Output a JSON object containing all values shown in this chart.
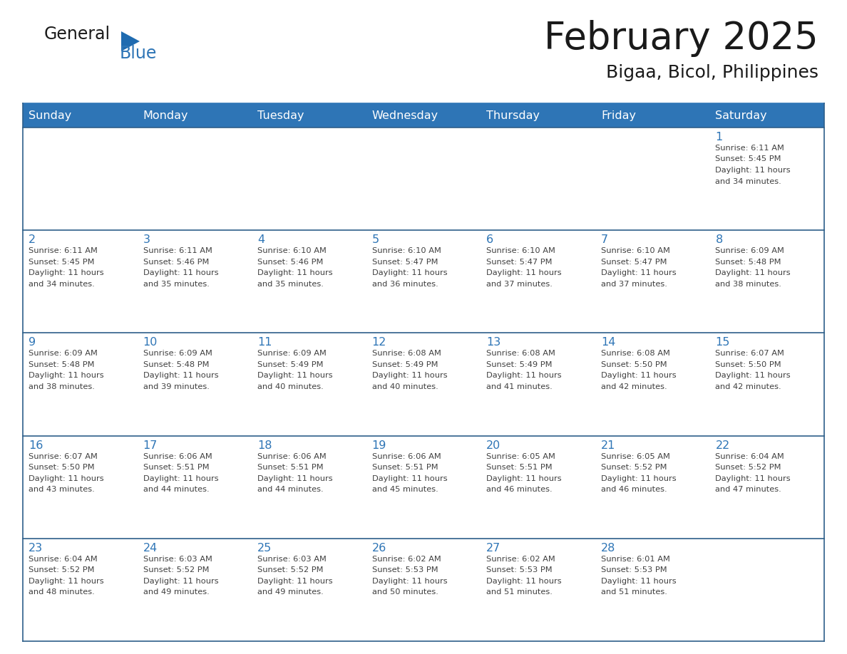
{
  "title": "February 2025",
  "subtitle": "Bigaa, Bicol, Philippines",
  "days_of_week": [
    "Sunday",
    "Monday",
    "Tuesday",
    "Wednesday",
    "Thursday",
    "Friday",
    "Saturday"
  ],
  "header_bg": "#2E75B6",
  "header_text_color": "#FFFFFF",
  "cell_bg_white": "#FFFFFF",
  "cell_bg_gray": "#F2F2F2",
  "grid_line_color": "#2E5F8A",
  "title_color": "#1a1a1a",
  "subtitle_color": "#1a1a1a",
  "day_number_color": "#2E75B6",
  "cell_text_color": "#404040",
  "logo_general_color": "#1a1a1a",
  "logo_blue_color": "#2E75B6",
  "logo_triangle_color": "#1F6BB0",
  "calendar_data": [
    [
      null,
      null,
      null,
      null,
      null,
      null,
      {
        "day": 1,
        "sunrise": "6:11 AM",
        "sunset": "5:45 PM",
        "daylight": "11 hours and 34 minutes."
      }
    ],
    [
      {
        "day": 2,
        "sunrise": "6:11 AM",
        "sunset": "5:45 PM",
        "daylight": "11 hours and 34 minutes."
      },
      {
        "day": 3,
        "sunrise": "6:11 AM",
        "sunset": "5:46 PM",
        "daylight": "11 hours and 35 minutes."
      },
      {
        "day": 4,
        "sunrise": "6:10 AM",
        "sunset": "5:46 PM",
        "daylight": "11 hours and 35 minutes."
      },
      {
        "day": 5,
        "sunrise": "6:10 AM",
        "sunset": "5:47 PM",
        "daylight": "11 hours and 36 minutes."
      },
      {
        "day": 6,
        "sunrise": "6:10 AM",
        "sunset": "5:47 PM",
        "daylight": "11 hours and 37 minutes."
      },
      {
        "day": 7,
        "sunrise": "6:10 AM",
        "sunset": "5:47 PM",
        "daylight": "11 hours and 37 minutes."
      },
      {
        "day": 8,
        "sunrise": "6:09 AM",
        "sunset": "5:48 PM",
        "daylight": "11 hours and 38 minutes."
      }
    ],
    [
      {
        "day": 9,
        "sunrise": "6:09 AM",
        "sunset": "5:48 PM",
        "daylight": "11 hours and 38 minutes."
      },
      {
        "day": 10,
        "sunrise": "6:09 AM",
        "sunset": "5:48 PM",
        "daylight": "11 hours and 39 minutes."
      },
      {
        "day": 11,
        "sunrise": "6:09 AM",
        "sunset": "5:49 PM",
        "daylight": "11 hours and 40 minutes."
      },
      {
        "day": 12,
        "sunrise": "6:08 AM",
        "sunset": "5:49 PM",
        "daylight": "11 hours and 40 minutes."
      },
      {
        "day": 13,
        "sunrise": "6:08 AM",
        "sunset": "5:49 PM",
        "daylight": "11 hours and 41 minutes."
      },
      {
        "day": 14,
        "sunrise": "6:08 AM",
        "sunset": "5:50 PM",
        "daylight": "11 hours and 42 minutes."
      },
      {
        "day": 15,
        "sunrise": "6:07 AM",
        "sunset": "5:50 PM",
        "daylight": "11 hours and 42 minutes."
      }
    ],
    [
      {
        "day": 16,
        "sunrise": "6:07 AM",
        "sunset": "5:50 PM",
        "daylight": "11 hours and 43 minutes."
      },
      {
        "day": 17,
        "sunrise": "6:06 AM",
        "sunset": "5:51 PM",
        "daylight": "11 hours and 44 minutes."
      },
      {
        "day": 18,
        "sunrise": "6:06 AM",
        "sunset": "5:51 PM",
        "daylight": "11 hours and 44 minutes."
      },
      {
        "day": 19,
        "sunrise": "6:06 AM",
        "sunset": "5:51 PM",
        "daylight": "11 hours and 45 minutes."
      },
      {
        "day": 20,
        "sunrise": "6:05 AM",
        "sunset": "5:51 PM",
        "daylight": "11 hours and 46 minutes."
      },
      {
        "day": 21,
        "sunrise": "6:05 AM",
        "sunset": "5:52 PM",
        "daylight": "11 hours and 46 minutes."
      },
      {
        "day": 22,
        "sunrise": "6:04 AM",
        "sunset": "5:52 PM",
        "daylight": "11 hours and 47 minutes."
      }
    ],
    [
      {
        "day": 23,
        "sunrise": "6:04 AM",
        "sunset": "5:52 PM",
        "daylight": "11 hours and 48 minutes."
      },
      {
        "day": 24,
        "sunrise": "6:03 AM",
        "sunset": "5:52 PM",
        "daylight": "11 hours and 49 minutes."
      },
      {
        "day": 25,
        "sunrise": "6:03 AM",
        "sunset": "5:52 PM",
        "daylight": "11 hours and 49 minutes."
      },
      {
        "day": 26,
        "sunrise": "6:02 AM",
        "sunset": "5:53 PM",
        "daylight": "11 hours and 50 minutes."
      },
      {
        "day": 27,
        "sunrise": "6:02 AM",
        "sunset": "5:53 PM",
        "daylight": "11 hours and 51 minutes."
      },
      {
        "day": 28,
        "sunrise": "6:01 AM",
        "sunset": "5:53 PM",
        "daylight": "11 hours and 51 minutes."
      },
      null
    ]
  ]
}
